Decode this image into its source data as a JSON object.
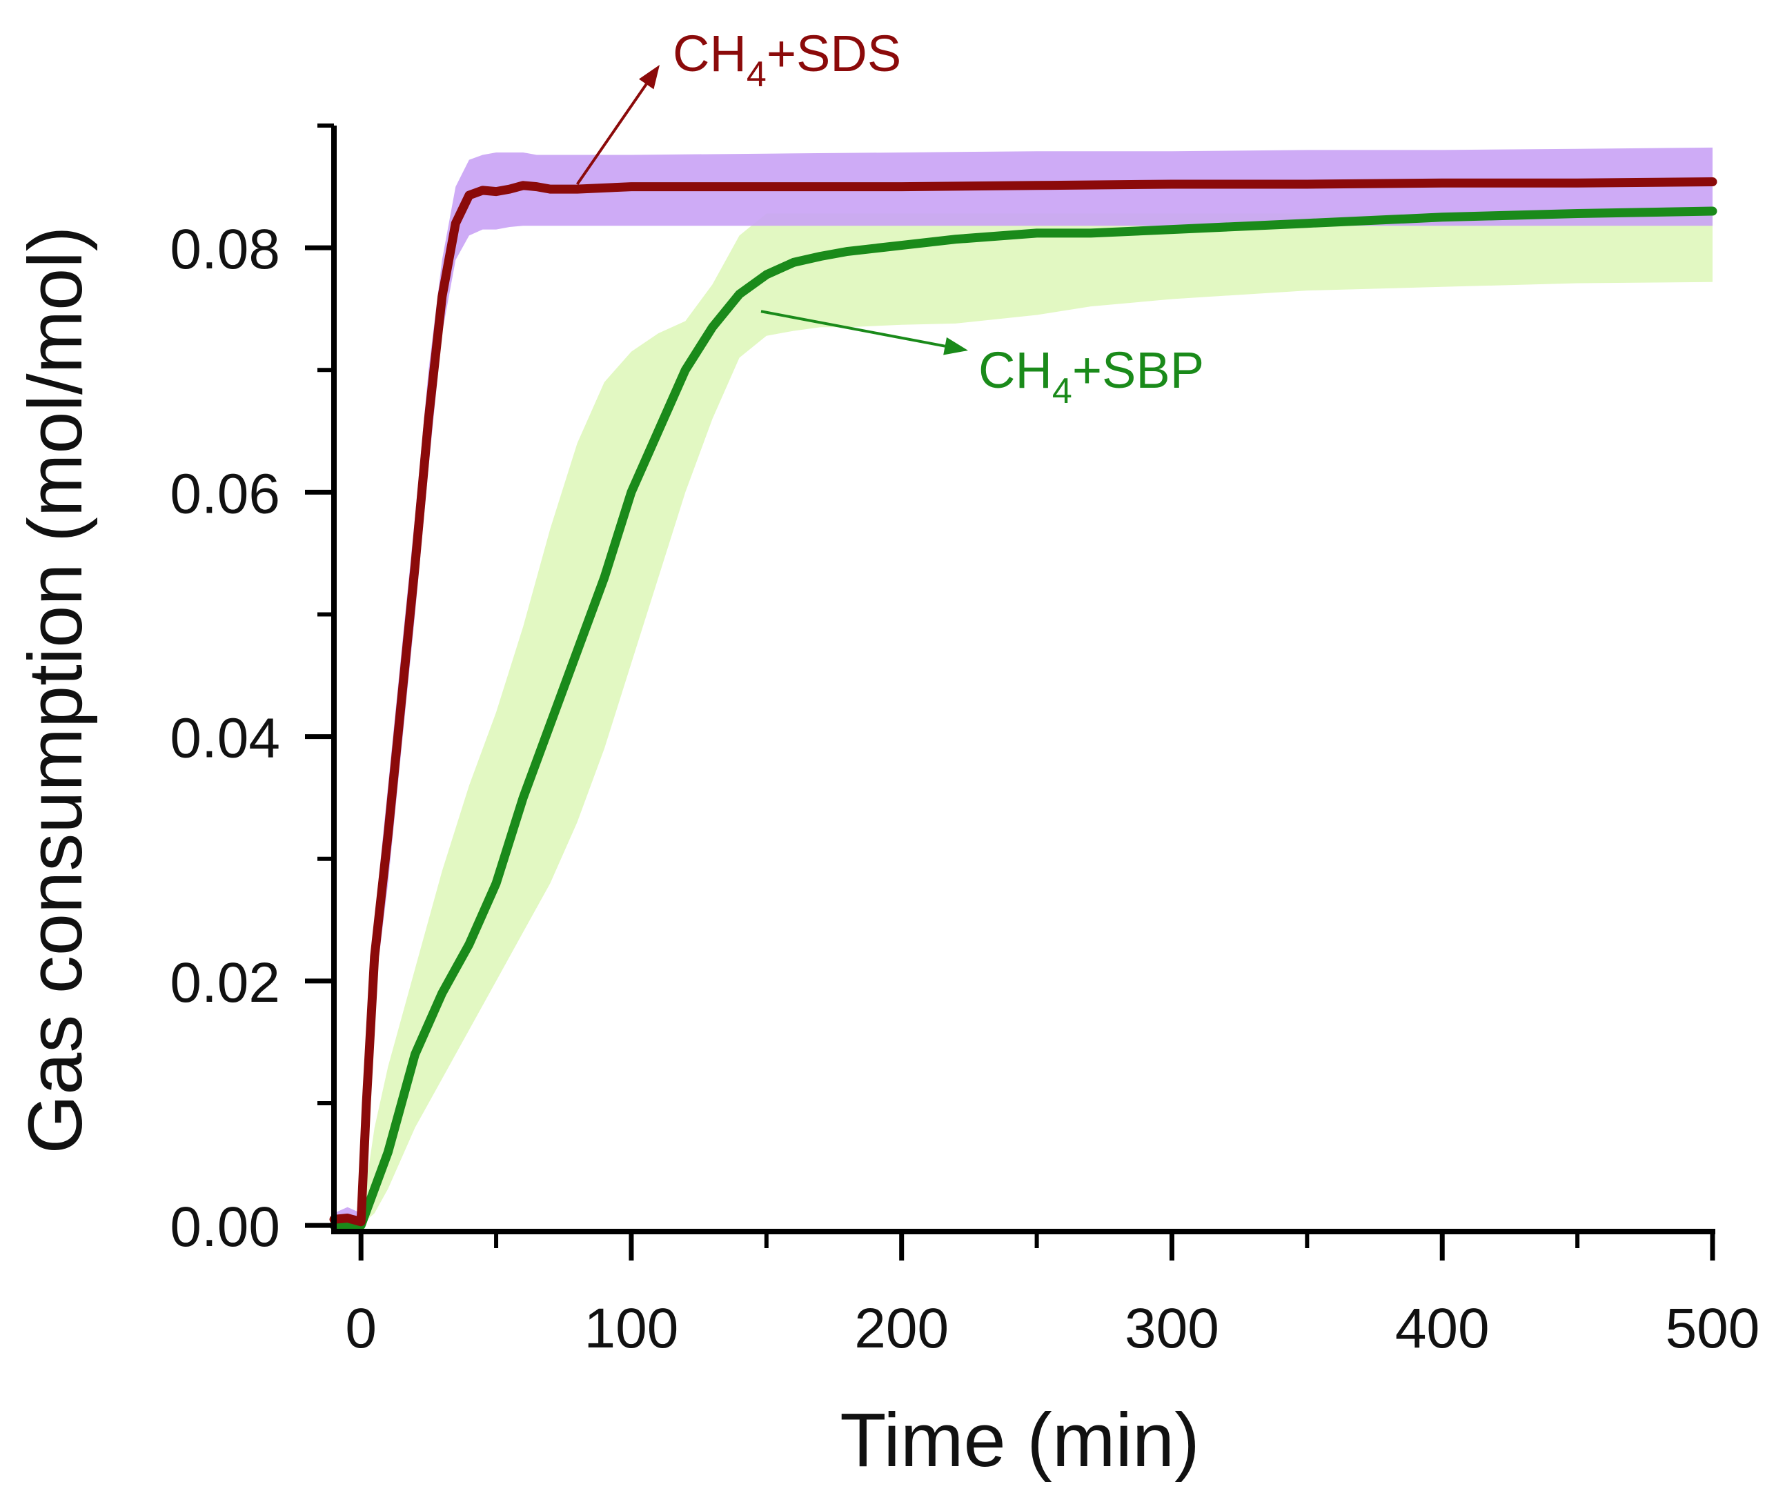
{
  "chart_data": {
    "type": "line",
    "xlabel": "Time (min)",
    "ylabel": "Gas consumption (mol/mol)",
    "xlim": [
      -10,
      500
    ],
    "ylim": [
      -0.0005,
      0.09
    ],
    "x_ticks": [
      0,
      100,
      200,
      300,
      400,
      500
    ],
    "x_tick_labels": [
      "0",
      "100",
      "200",
      "300",
      "400",
      "500"
    ],
    "y_ticks": [
      0.0,
      0.02,
      0.04,
      0.06,
      0.08
    ],
    "y_tick_labels": [
      "0.00",
      "0.02",
      "0.04",
      "0.06",
      "0.08"
    ],
    "x_minor_ticks": [
      50,
      150,
      250,
      350,
      450
    ],
    "y_minor_ticks": [
      0.01,
      0.03,
      0.05,
      0.07,
      0.09
    ],
    "series": [
      {
        "name": "CH4+SDS",
        "color": "#8b0a0a",
        "band_color": "#c9a2f5",
        "x": [
          -10,
          -5,
          0,
          2,
          5,
          10,
          15,
          20,
          25,
          30,
          35,
          40,
          45,
          50,
          55,
          60,
          65,
          70,
          80,
          100,
          150,
          200,
          250,
          300,
          350,
          400,
          450,
          500
        ],
        "y": [
          0.0005,
          0.0006,
          0.0003,
          0.01,
          0.022,
          0.032,
          0.043,
          0.054,
          0.066,
          0.076,
          0.082,
          0.0843,
          0.0847,
          0.0846,
          0.0848,
          0.0851,
          0.085,
          0.0848,
          0.0848,
          0.085,
          0.085,
          0.085,
          0.0851,
          0.0852,
          0.0852,
          0.0853,
          0.0853,
          0.0854
        ],
        "lower": [
          0.0,
          0.0,
          0.0,
          0.008,
          0.019,
          0.028,
          0.039,
          0.05,
          0.062,
          0.073,
          0.079,
          0.081,
          0.0815,
          0.0815,
          0.0817,
          0.0818,
          0.0818,
          0.0818,
          0.0818,
          0.0818,
          0.0818,
          0.0818,
          0.0818,
          0.0818,
          0.0818,
          0.0818,
          0.0818,
          0.0818
        ],
        "upper": [
          0.001,
          0.0015,
          0.001,
          0.013,
          0.025,
          0.036,
          0.047,
          0.058,
          0.07,
          0.079,
          0.085,
          0.0872,
          0.0876,
          0.0878,
          0.0878,
          0.0878,
          0.0876,
          0.0876,
          0.0876,
          0.0876,
          0.0877,
          0.0878,
          0.0879,
          0.0879,
          0.088,
          0.088,
          0.0881,
          0.0882
        ]
      },
      {
        "name": "CH4+SBP",
        "color": "#1a8a1a",
        "band_color": "#e2f8c2",
        "x": [
          -10,
          -5,
          0,
          5,
          10,
          20,
          30,
          40,
          50,
          60,
          70,
          80,
          90,
          100,
          110,
          120,
          130,
          140,
          150,
          160,
          170,
          180,
          200,
          220,
          250,
          270,
          300,
          350,
          400,
          450,
          500
        ],
        "y": [
          0.0,
          0.0,
          0.0,
          0.003,
          0.006,
          0.014,
          0.019,
          0.023,
          0.028,
          0.035,
          0.041,
          0.047,
          0.053,
          0.06,
          0.065,
          0.07,
          0.0735,
          0.0762,
          0.0778,
          0.0788,
          0.0793,
          0.0797,
          0.0802,
          0.0807,
          0.0812,
          0.0812,
          0.0815,
          0.082,
          0.0825,
          0.0828,
          0.083
        ],
        "lower": [
          0.0,
          0.0,
          0.0,
          0.001,
          0.003,
          0.008,
          0.012,
          0.016,
          0.02,
          0.024,
          0.028,
          0.033,
          0.039,
          0.046,
          0.053,
          0.06,
          0.066,
          0.071,
          0.0728,
          0.0732,
          0.0735,
          0.0735,
          0.0737,
          0.0738,
          0.0745,
          0.0752,
          0.0758,
          0.0765,
          0.0768,
          0.0771,
          0.0772
        ],
        "upper": [
          0.0005,
          0.0005,
          0.0005,
          0.008,
          0.013,
          0.021,
          0.029,
          0.036,
          0.042,
          0.049,
          0.057,
          0.064,
          0.069,
          0.0715,
          0.073,
          0.074,
          0.077,
          0.081,
          0.0828,
          0.0828,
          0.0828,
          0.0828,
          0.0828,
          0.0828,
          0.0828,
          0.0828,
          0.0828,
          0.0828,
          0.0828,
          0.0828,
          0.0828
        ]
      }
    ],
    "annotations": [
      {
        "series": "CH4+SDS",
        "main": "CH",
        "sub": "4",
        "rest": "+SDS",
        "color": "#8b0a0a",
        "point_x": 80,
        "point_y": 0.0852
      },
      {
        "series": "CH4+SBP",
        "main": "CH",
        "sub": "4",
        "rest": "+SBP",
        "color": "#1a8a1a",
        "point_x": 148,
        "point_y": 0.0748
      }
    ]
  }
}
